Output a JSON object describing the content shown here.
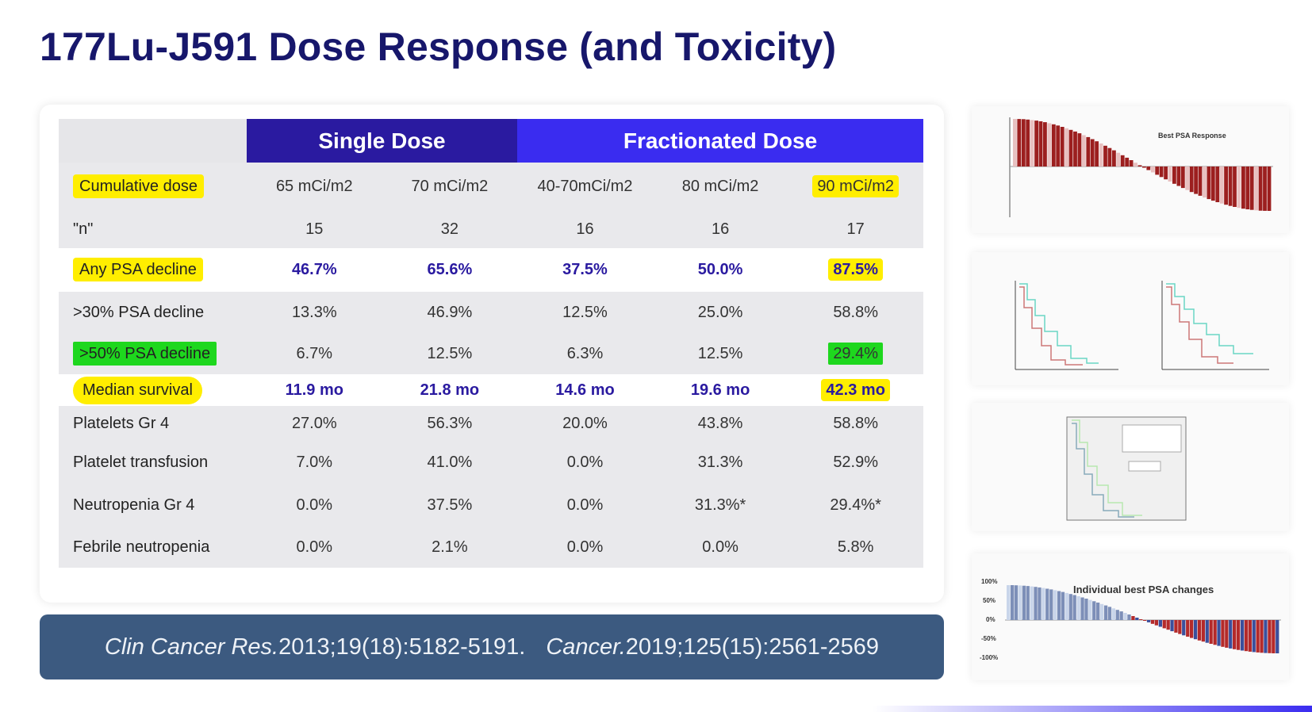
{
  "title": "177Lu-J591 Dose Response (and Toxicity)",
  "table": {
    "group_headers": {
      "single": "Single Dose",
      "fractionated": "Fractionated Dose"
    },
    "rows": [
      {
        "label": "Cumulative dose",
        "values": [
          "65 mCi/m2",
          "70 mCi/m2",
          "40-70mCi/m2",
          "80 mCi/m2",
          "90 mCi/m2"
        ]
      },
      {
        "label": "\"n\"",
        "values": [
          "15",
          "32",
          "16",
          "16",
          "17"
        ]
      },
      {
        "label": "Any PSA decline",
        "values": [
          "46.7%",
          "65.6%",
          "37.5%",
          "50.0%",
          "87.5%"
        ]
      },
      {
        "label": ">30% PSA decline",
        "values": [
          "13.3%",
          "46.9%",
          "12.5%",
          "25.0%",
          "58.8%"
        ]
      },
      {
        "label": ">50% PSA decline",
        "values": [
          "6.7%",
          "12.5%",
          "6.3%",
          "12.5%",
          "29.4%"
        ]
      },
      {
        "label": "Median survival",
        "values": [
          "11.9 mo",
          "21.8 mo",
          "14.6 mo",
          "19.6 mo",
          "42.3 mo"
        ]
      },
      {
        "label": "Platelets Gr 4",
        "values": [
          "27.0%",
          "56.3%",
          "20.0%",
          "43.8%",
          "58.8%"
        ]
      },
      {
        "label": "Platelet transfusion",
        "values": [
          "7.0%",
          "41.0%",
          "0.0%",
          "31.3%",
          "52.9%"
        ]
      },
      {
        "label": "Neutropenia Gr 4",
        "values": [
          "0.0%",
          "37.5%",
          "0.0%",
          "31.3%*",
          "29.4%*"
        ]
      },
      {
        "label": "Febrile neutropenia",
        "values": [
          "0.0%",
          "2.1%",
          "0.0%",
          "0.0%",
          "5.8%"
        ]
      }
    ]
  },
  "citation": {
    "journal1": "Clin Cancer Res.",
    "ref1": " 2013;19(18):5182-5191.",
    "journal2": "Cancer.",
    "ref2": " 2019;125(15):2561-2569"
  },
  "thumbnails": {
    "psa_response_title": "Best PSA Response",
    "individual_psa_title": "Individual best PSA changes",
    "individual_psa_ticks": [
      "100%",
      "50%",
      "0%",
      "-50%",
      "-100%"
    ]
  },
  "colors": {
    "title": "#17176b",
    "single_header": "#2a1aa0",
    "fractionated_header": "#3a2cf0",
    "highlight_yellow": "#ffee00",
    "highlight_green": "#1ed71e",
    "footer_bg": "#3c5a80"
  }
}
